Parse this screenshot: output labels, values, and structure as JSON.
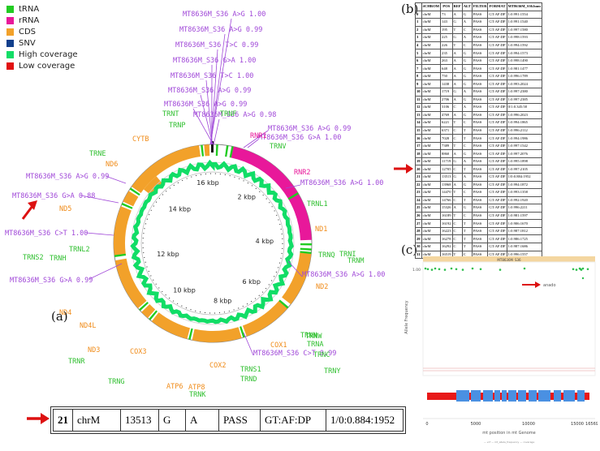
{
  "legend": [
    {
      "label": "tRNA",
      "color": "#22cc22"
    },
    {
      "label": "rRNA",
      "color": "#e8189a"
    },
    {
      "label": "CDS",
      "color": "#f2a12a"
    },
    {
      "label": "SNV",
      "color": "#113f8c"
    },
    {
      "label": "High coverage",
      "color": "#11dd66"
    },
    {
      "label": "Low coverage",
      "color": "#e11111"
    }
  ],
  "panel_labels": {
    "a": "(a)",
    "b": "(b)",
    "c": "(c)"
  },
  "circle": {
    "ticks": [
      "16 kbp",
      "2 kbp",
      "4 kbp",
      "6 kbp",
      "8 kbp",
      "10 kbp",
      "12 kbp",
      "14 kbp"
    ],
    "trna_labels": [
      "TRNT",
      "TRNP",
      "TRNF",
      "TRNV",
      "TRNL1",
      "TRNI",
      "TRNQ",
      "TRNM",
      "TRNW",
      "TRNA",
      "TRNN",
      "TRNC",
      "TRNY",
      "TRNS1",
      "TRND",
      "TRNK",
      "TRNG",
      "TRNR",
      "TRNH",
      "TRNS2",
      "TRNL2",
      "TRNE"
    ],
    "gene_labels": [
      "CYTB",
      "ND6",
      "ND5",
      "ND4",
      "ND4L",
      "ND3",
      "COX3",
      "ATP6",
      "ATP8",
      "COX2",
      "COX1",
      "ND2",
      "ND1"
    ],
    "rrna_labels": [
      "RNR1",
      "RNR2"
    ],
    "variant_labels": [
      "MT8636M_S36 A>G 1.00",
      "MT8636M_S36 A>G 0.99",
      "MT8636M_S36 T>C 0.99",
      "MT8636M_S36 G>A 1.00",
      "MT8636M_S36 T>C 1.00",
      "MT8636M_S36 A>G 0.99",
      "MT8636M_S36 A>G 0.99",
      "MT8636M_S36 A>G 0.98",
      "MT8636M_S36 A>G 0.99",
      "MT8636M_S36 G>A 1.00",
      "MT8636M_S36 A>G 1.00",
      "MT8636M_S36 A>G 1.00",
      "MT8636M_S36 C>T 0.99",
      "MT8636M_S36 G>A 0.99",
      "MT8636M_S36 C>T 1.00",
      "MT8636M_S36 G>A 0.88",
      "MT8636M_S36 A>G 0.99"
    ]
  },
  "vcf_table": {
    "headers": [
      "#CHROM",
      "POS",
      "REF",
      "ALT",
      "FILTER",
      "FORMAT",
      "MT8636M_S36.bam"
    ],
    "rows": [
      [
        "0",
        "chrM",
        "73",
        "A",
        "G",
        "PASS",
        "GT:AF:DP",
        "1:0.991:1554"
      ],
      [
        "1",
        "chrM",
        "143",
        "G",
        "A",
        "PASS",
        "GT:AF:DP",
        "1:0.991:1540"
      ],
      [
        "2",
        "chrM",
        "195",
        "T",
        "C",
        "PASS",
        "GT:AF:DP",
        "1:0.997:1580"
      ],
      [
        "3",
        "chrM",
        "225",
        "G",
        "A",
        "PASS",
        "GT:AF:DP",
        "1:0.998:1593"
      ],
      [
        "4",
        "chrM",
        "226",
        "T",
        "C",
        "PASS",
        "GT:AF:DP",
        "1:0.994:1592"
      ],
      [
        "5",
        "chrM",
        "235",
        "A",
        "G",
        "PASS",
        "GT:AF:DP",
        "1:0.994:1573"
      ],
      [
        "6",
        "chrM",
        "263",
        "A",
        "G",
        "PASS",
        "GT:AF:DP",
        "1:0.998:1490"
      ],
      [
        "7",
        "chrM",
        "648",
        "A",
        "G",
        "PASS",
        "GT:AF:DP",
        "1:0.981:1477"
      ],
      [
        "8",
        "chrM",
        "750",
        "A",
        "G",
        "PASS",
        "GT:AF:DP",
        "1:0.996:1789"
      ],
      [
        "9",
        "chrM",
        "1438",
        "A",
        "G",
        "PASS",
        "GT:AF:DP",
        "1:0.993:2024"
      ],
      [
        "10",
        "chrM",
        "1719",
        "G",
        "A",
        "PASS",
        "GT:AF:DP",
        "1:0.997:2380"
      ],
      [
        "11",
        "chrM",
        "2706",
        "A",
        "G",
        "PASS",
        "GT:AF:DP",
        "1:0.997:2385"
      ],
      [
        "12",
        "chrM",
        "3106",
        "C",
        "A",
        "PASS",
        "GT:AF:DP",
        "0/1:0.345:58"
      ],
      [
        "13",
        "chrM",
        "4769",
        "A",
        "G",
        "PASS",
        "GT:AF:DP",
        "1:0.996:2023"
      ],
      [
        "14",
        "chrM",
        "6221",
        "T",
        "C",
        "PASS",
        "GT:AF:DP",
        "1:0.994:1865"
      ],
      [
        "15",
        "chrM",
        "6371",
        "C",
        "T",
        "PASS",
        "GT:AF:DP",
        "1:0.996:2112"
      ],
      [
        "16",
        "chrM",
        "7028",
        "C",
        "T",
        "PASS",
        "GT:AF:DP",
        "1:0.994:1986"
      ],
      [
        "17",
        "chrM",
        "7389",
        "T",
        "C",
        "PASS",
        "GT:AF:DP",
        "1:0.997:1542"
      ],
      [
        "18",
        "chrM",
        "8860",
        "A",
        "G",
        "PASS",
        "GT:AF:DP",
        "1:0.997:2076"
      ],
      [
        "19",
        "chrM",
        "11719",
        "G",
        "A",
        "PASS",
        "GT:AF:DP",
        "1:0.995:1898"
      ],
      [
        "20",
        "chrM",
        "12705",
        "C",
        "T",
        "PASS",
        "GT:AF:DP",
        "1:0.997:2105"
      ],
      [
        "21",
        "chrM",
        "13513",
        "G",
        "A",
        "PASS",
        "GT:AF:DP",
        "1/0:0.884:1952"
      ],
      [
        "22",
        "chrM",
        "13968",
        "A",
        "G",
        "PASS",
        "GT:AF:DP",
        "1:0.994:1872"
      ],
      [
        "23",
        "chrM",
        "14470",
        "T",
        "C",
        "PASS",
        "GT:AF:DP",
        "1:0.993:1358"
      ],
      [
        "24",
        "chrM",
        "14766",
        "C",
        "T",
        "PASS",
        "GT:AF:DP",
        "1:0.992:1920"
      ],
      [
        "25",
        "chrM",
        "15326",
        "A",
        "G",
        "PASS",
        "GT:AF:DP",
        "1:0.996:2211"
      ],
      [
        "26",
        "chrM",
        "16189",
        "T",
        "C",
        "PASS",
        "GT:AF:DP",
        "1:0.981:1597"
      ],
      [
        "27",
        "chrM",
        "16192",
        "C",
        "T",
        "PASS",
        "GT:AF:DP",
        "1:0.906:1670"
      ],
      [
        "28",
        "chrM",
        "16223",
        "C",
        "T",
        "PASS",
        "GT:AF:DP",
        "1:0.987:1812"
      ],
      [
        "29",
        "chrM",
        "16278",
        "C",
        "T",
        "PASS",
        "GT:AF:DP",
        "1:0.986:1725"
      ],
      [
        "30",
        "chrM",
        "16292",
        "C",
        "T",
        "PASS",
        "GT:AF:DP",
        "1:0.987:1686"
      ],
      [
        "31",
        "chrM",
        "16519",
        "T",
        "C",
        "PASS",
        "GT:AF:DP",
        "1:0.996:1557"
      ]
    ]
  },
  "bottom_row": [
    "21",
    "chrM",
    "13513",
    "G",
    "A",
    "PASS",
    "GT:AF:DP",
    "1/0:0.884:1952"
  ],
  "plot_c": {
    "header": "MT8636M_S36",
    "ylabel": "Allele Frequency",
    "xlabel": "mt position in mt Genome",
    "y_ticks": [
      "1.00",
      "0.75",
      "0.50",
      "0.25"
    ],
    "x_ticks": [
      "0",
      "5000",
      "10000",
      "15000",
      "16569"
    ],
    "annotation": "anado",
    "legend_text": "— vcf — mt_allele_frequency — coverage"
  }
}
